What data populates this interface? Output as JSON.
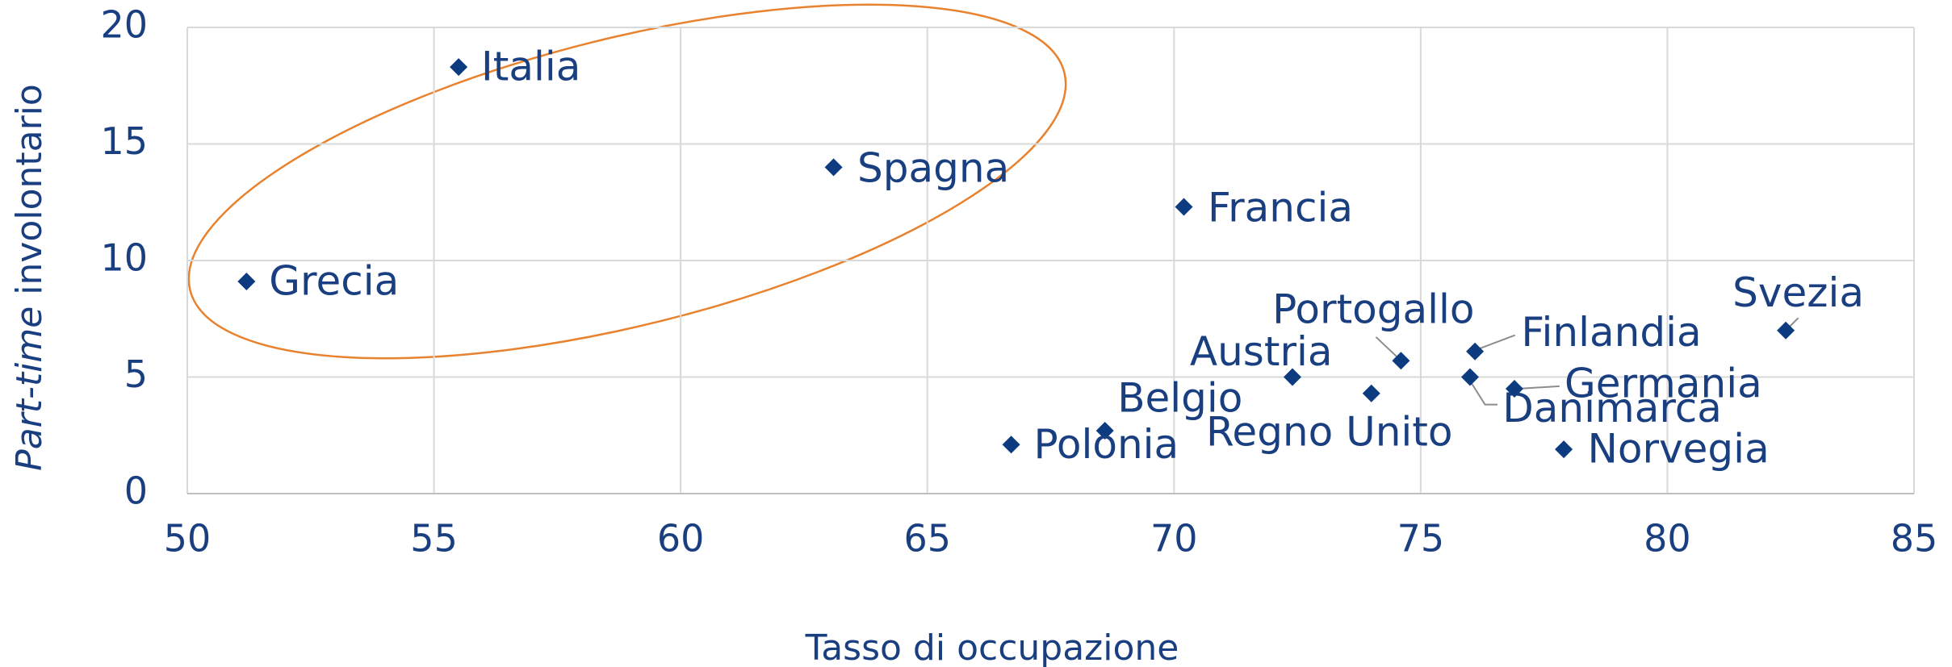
{
  "chart_data": {
    "type": "scatter",
    "xlabel": "Tasso di occupazione",
    "ylabel": [
      "Part-time",
      "involontario"
    ],
    "points": [
      "Italia",
      "Spagna",
      "Grecia",
      "Francia",
      "Svezia",
      "Portogallo",
      "Finlandia",
      "Austria",
      "Regno Unito",
      "Danimarca",
      "Germania",
      "Belgio",
      "Polonia",
      "Norvegia"
    ],
    "x": [
      55.5,
      63.1,
      51.2,
      70.2,
      82.4,
      74.6,
      76.1,
      72.4,
      74.0,
      76.0,
      76.9,
      68.6,
      66.7,
      77.9
    ],
    "y": [
      18.3,
      14.0,
      9.1,
      12.3,
      7.0,
      5.7,
      6.1,
      5.0,
      4.3,
      5.0,
      4.5,
      2.7,
      2.1,
      1.9
    ],
    "color": "#0c3b80",
    "xlim": [
      50,
      85
    ],
    "xticks": [
      50,
      55,
      60,
      65,
      70,
      75,
      80,
      85
    ],
    "ylim": [
      0,
      20
    ],
    "yticks": [
      0,
      5,
      10,
      15,
      20
    ],
    "grid": true
  }
}
